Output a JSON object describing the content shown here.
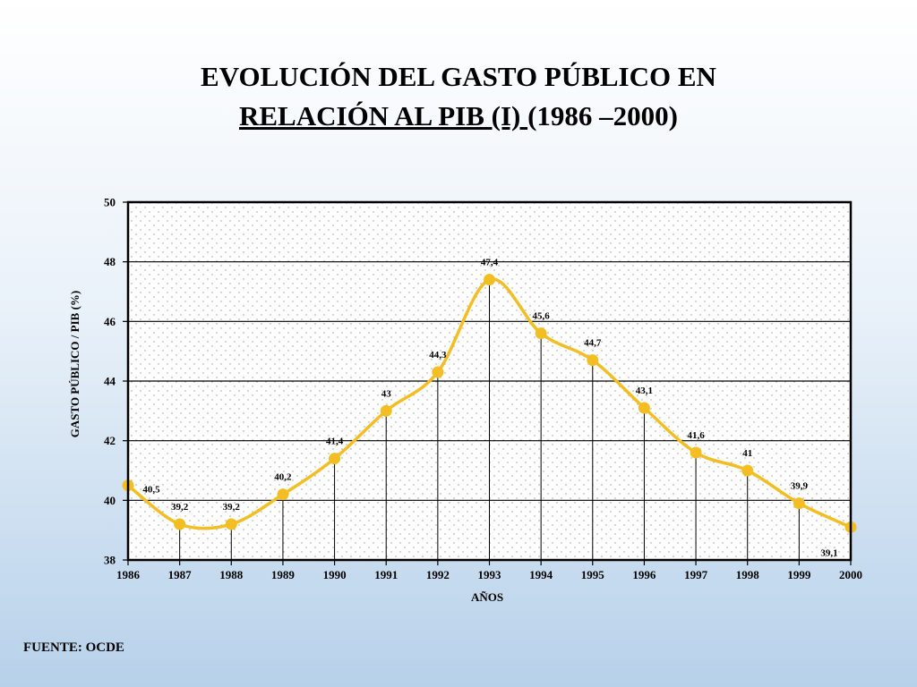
{
  "title": {
    "line1": "EVOLUCIÓN DEL GASTO PÚBLICO EN",
    "line2_underlined": "RELACIÓN AL PIB (I) ",
    "line2_rest": "(1986 –2000)"
  },
  "source": "FUENTE: OCDE",
  "colors": {
    "line": "#f2be23",
    "marker": "#f2be23",
    "grid": "#000000",
    "plot_dots": "#9a9a9a"
  },
  "chart_data": {
    "type": "line",
    "xlabel": "AÑOS",
    "ylabel": "GASTO PÚBLICO / PIB (%)",
    "ylim": [
      38,
      50
    ],
    "yticks": [
      "38",
      "40",
      "42",
      "44",
      "46",
      "48",
      "50"
    ],
    "categories": [
      "1986",
      "1987",
      "1988",
      "1989",
      "1990",
      "1991",
      "1992",
      "1993",
      "1994",
      "1995",
      "1996",
      "1997",
      "1998",
      "1999",
      "2000"
    ],
    "values": [
      40.5,
      39.2,
      39.2,
      40.2,
      41.4,
      43,
      44.3,
      47.4,
      45.6,
      44.7,
      43.1,
      41.6,
      41,
      39.9,
      39.1
    ],
    "data_labels": [
      "40,5",
      "39,2",
      "39,2",
      "40,2",
      "41,4",
      "43",
      "44,3",
      "47,4",
      "45,6",
      "44,7",
      "43,1",
      "41,6",
      "41",
      "39,9",
      "39,1"
    ],
    "grid": true,
    "smooth": true
  }
}
